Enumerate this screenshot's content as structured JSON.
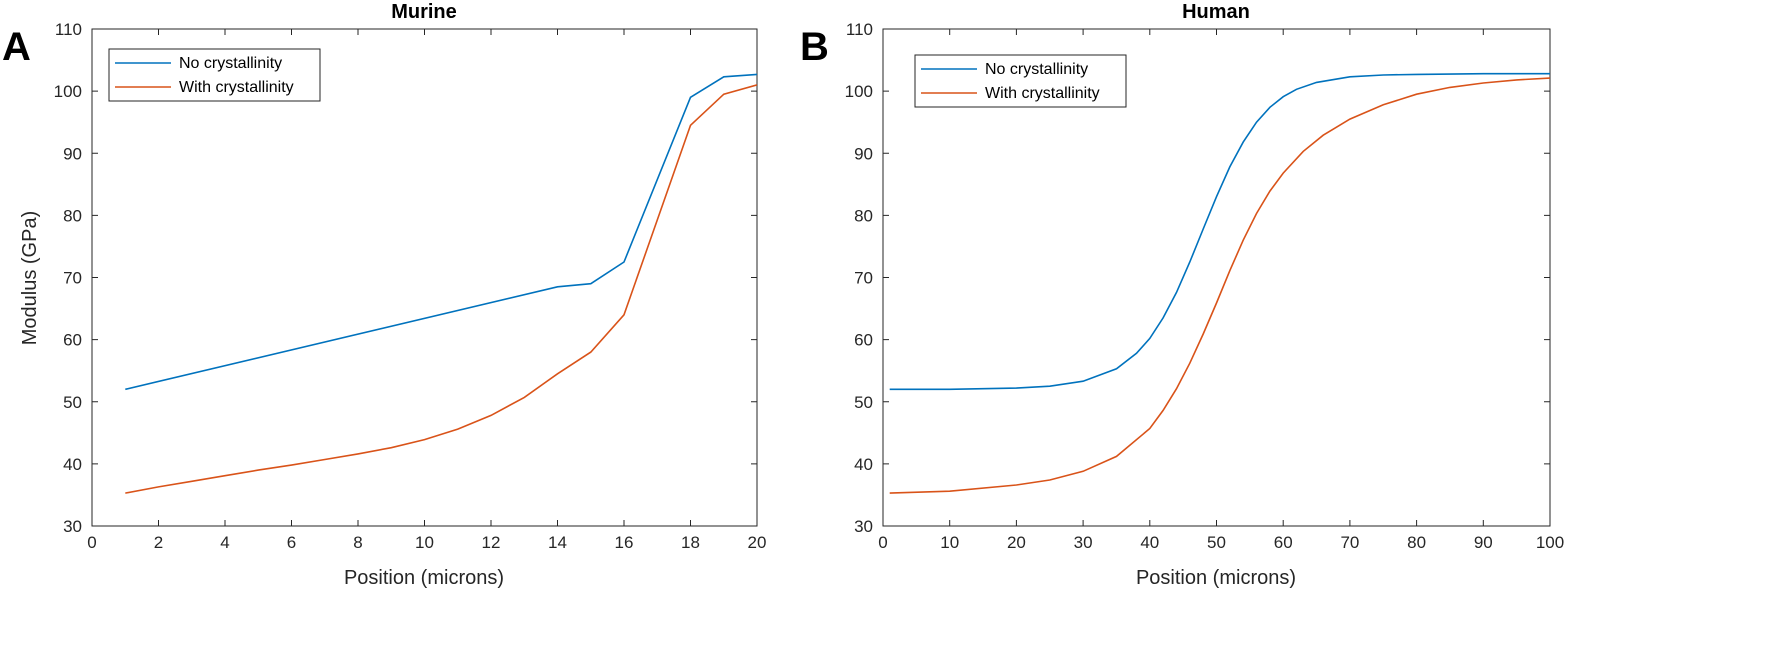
{
  "panel_letters": [
    "A",
    "B"
  ],
  "chart_data": [
    {
      "type": "line",
      "title": "Murine",
      "xlabel": "Position (microns)",
      "ylabel": "Modulus (GPa)",
      "xlim": [
        0,
        20
      ],
      "ylim": [
        30,
        110
      ],
      "xticks": [
        0,
        2,
        4,
        6,
        8,
        10,
        12,
        14,
        16,
        18,
        20
      ],
      "yticks": [
        30,
        40,
        50,
        60,
        70,
        80,
        90,
        100,
        110
      ],
      "grid": false,
      "legend_position": "top-left",
      "series": [
        {
          "name": "No crystallinity",
          "color": "#0072BD",
          "x": [
            1,
            14,
            15,
            16,
            18,
            19,
            20
          ],
          "y": [
            52,
            68.5,
            69,
            72.5,
            99,
            102.3,
            102.7
          ]
        },
        {
          "name": "With crystallinity",
          "color": "#D95319",
          "x": [
            1,
            2,
            3,
            4,
            5,
            6,
            7,
            8,
            9,
            10,
            11,
            12,
            13,
            14,
            15,
            16,
            18,
            19,
            20
          ],
          "y": [
            35.3,
            36.3,
            37.2,
            38.1,
            39,
            39.8,
            40.7,
            41.6,
            42.6,
            43.9,
            45.6,
            47.8,
            50.7,
            54.5,
            58,
            64,
            94.5,
            99.5,
            101
          ]
        }
      ]
    },
    {
      "type": "line",
      "title": "Human",
      "xlabel": "Position (microns)",
      "ylabel": "",
      "xlim": [
        0,
        100
      ],
      "ylim": [
        30,
        110
      ],
      "xticks": [
        0,
        10,
        20,
        30,
        40,
        50,
        60,
        70,
        80,
        90,
        100
      ],
      "yticks": [
        30,
        40,
        50,
        60,
        70,
        80,
        90,
        100,
        110
      ],
      "grid": false,
      "legend_position": "top-left",
      "series": [
        {
          "name": "No crystallinity",
          "color": "#0072BD",
          "x": [
            1,
            10,
            20,
            25,
            30,
            35,
            38,
            40,
            42,
            44,
            46,
            48,
            50,
            52,
            54,
            56,
            58,
            60,
            62,
            65,
            70,
            75,
            80,
            90,
            100
          ],
          "y": [
            52,
            52,
            52.2,
            52.5,
            53.3,
            55.3,
            57.8,
            60.2,
            63.5,
            67.6,
            72.5,
            77.8,
            83,
            87.8,
            91.8,
            95,
            97.4,
            99.1,
            100.3,
            101.4,
            102.3,
            102.6,
            102.7,
            102.8,
            102.8
          ]
        },
        {
          "name": "With crystallinity",
          "color": "#D95319",
          "x": [
            1,
            10,
            20,
            25,
            30,
            35,
            40,
            42,
            44,
            46,
            48,
            50,
            52,
            54,
            56,
            58,
            60,
            63,
            66,
            70,
            75,
            80,
            85,
            90,
            95,
            100
          ],
          "y": [
            35.3,
            35.6,
            36.6,
            37.4,
            38.8,
            41.2,
            45.7,
            48.6,
            52.1,
            56.2,
            60.9,
            65.9,
            71.1,
            76,
            80.3,
            83.9,
            86.8,
            90.3,
            92.9,
            95.5,
            97.8,
            99.5,
            100.6,
            101.3,
            101.8,
            102.1
          ]
        }
      ]
    }
  ]
}
